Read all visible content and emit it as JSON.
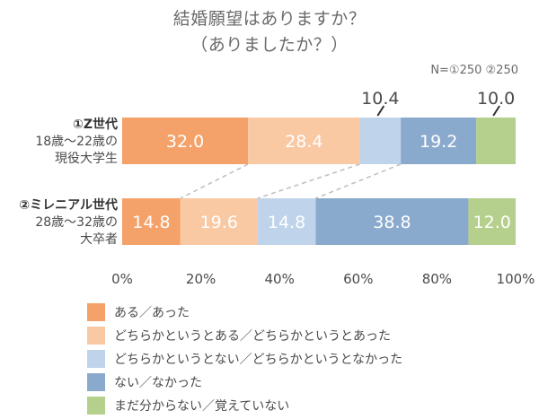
{
  "chart_data": {
    "type": "bar",
    "orientation": "horizontal",
    "stacked": true,
    "title_lines": [
      "結婚願望はありますか？",
      "（ありましたか？）"
    ],
    "sample_note": "N=①250 ②250",
    "categories": [
      {
        "lines": [
          "①Z世代",
          "18歳〜22歳の",
          "現役大学生"
        ]
      },
      {
        "lines": [
          "②ミレニアル世代",
          "28歳〜32歳の",
          "大卒者"
        ]
      }
    ],
    "series": [
      {
        "name": "ある／あった",
        "color": "#f4a26a",
        "values": [
          32.0,
          14.8
        ]
      },
      {
        "name": "どちらかというとある／どちらかというとあった",
        "color": "#f9c9a4",
        "values": [
          28.4,
          19.6
        ]
      },
      {
        "name": "どちらかというとない／どちらかというとなかった",
        "color": "#bfd3ea",
        "values": [
          10.4,
          14.8
        ]
      },
      {
        "name": "ない／なかった",
        "color": "#8aaacd",
        "values": [
          19.2,
          38.8
        ]
      },
      {
        "name": "まだ分からない／覚えていない",
        "color": "#b5cf8c",
        "values": [
          10.0,
          12.0
        ]
      }
    ],
    "xlim": [
      0,
      100
    ],
    "x_ticks": [
      "0%",
      "20%",
      "40%",
      "60%",
      "80%",
      "100%"
    ],
    "legend_position": "bottom",
    "grid": false
  }
}
